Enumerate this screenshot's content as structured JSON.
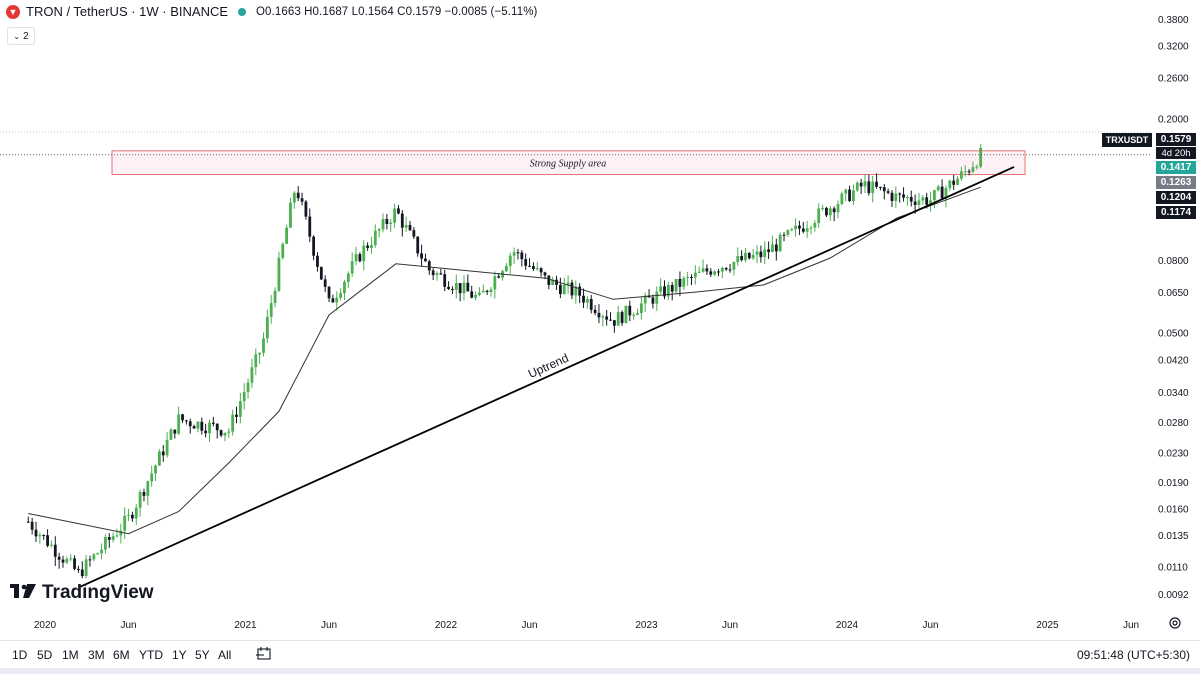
{
  "header": {
    "title": "TRON / TetherUS · 1W · BINANCE",
    "ohlc": "O0.1663 H0.1687 L0.1564 C0.1579 −0.0085 (−5.11%)",
    "indicator_count": "2"
  },
  "brand": "TradingView",
  "colors": {
    "up": "#26a69a",
    "up_candle": "#4caf50",
    "down": "#131722",
    "ma": "#333333",
    "supply_stroke": "#e57373",
    "supply_fill": "rgba(244,143,177,0.12)",
    "trendline": "#000000"
  },
  "chart_data": {
    "type": "candlestick",
    "symbol": "TRXUSDT",
    "scale": "log",
    "ylim": [
      0.0083,
      0.43
    ],
    "y_ticks": [
      "0.3800",
      "0.3200",
      "0.2600",
      "0.2000",
      "0.0800",
      "0.0650",
      "0.0500",
      "0.0420",
      "0.0340",
      "0.0280",
      "0.0230",
      "0.0190",
      "0.0160",
      "0.0135",
      "0.0110",
      "0.0092"
    ],
    "x_ticks": [
      "2020",
      "Jun",
      "2021",
      "Jun",
      "2022",
      "Jun",
      "2023",
      "Jun",
      "2024",
      "Jun",
      "2025",
      "Jun"
    ],
    "price_labels": [
      {
        "label": "TRXUSDT",
        "value": "0.1579",
        "color": "#131722"
      },
      {
        "label": "countdown",
        "value": "4d 20h",
        "color": "#131722"
      },
      {
        "label": "",
        "value": "0.1417",
        "color": "#26a69a"
      },
      {
        "label": "",
        "value": "0.1263",
        "color": "#787b86"
      },
      {
        "label": "",
        "value": "0.1204",
        "color": "#131722"
      },
      {
        "label": "",
        "value": "0.1174",
        "color": "#131722"
      }
    ],
    "annotations": {
      "supply_zone": {
        "text": "Strong Supply area",
        "low": 0.139,
        "high": 0.162,
        "start": "2020-05",
        "end": "2024-11"
      },
      "trendline": {
        "text": "Uptrend",
        "from": {
          "date": "2020-03",
          "value": 0.0096
        },
        "to": {
          "date": "2024-11",
          "value": 0.146
        }
      }
    },
    "anchors": [
      {
        "date": "2019-12",
        "value": 0.0147
      },
      {
        "date": "2020-03",
        "value": 0.0105
      },
      {
        "date": "2020-06",
        "value": 0.015
      },
      {
        "date": "2020-09",
        "value": 0.0285
      },
      {
        "date": "2020-12",
        "value": 0.0265
      },
      {
        "date": "2021-02",
        "value": 0.046
      },
      {
        "date": "2021-04",
        "value": 0.13
      },
      {
        "date": "2021-06",
        "value": 0.06
      },
      {
        "date": "2021-08",
        "value": 0.085
      },
      {
        "date": "2021-10",
        "value": 0.11
      },
      {
        "date": "2021-12",
        "value": 0.075
      },
      {
        "date": "2022-03",
        "value": 0.062
      },
      {
        "date": "2022-05",
        "value": 0.085
      },
      {
        "date": "2022-07",
        "value": 0.07
      },
      {
        "date": "2022-09",
        "value": 0.064
      },
      {
        "date": "2022-11",
        "value": 0.054
      },
      {
        "date": "2023-02",
        "value": 0.065
      },
      {
        "date": "2023-05",
        "value": 0.076
      },
      {
        "date": "2023-08",
        "value": 0.083
      },
      {
        "date": "2023-11",
        "value": 0.105
      },
      {
        "date": "2024-02",
        "value": 0.13
      },
      {
        "date": "2024-04",
        "value": 0.12
      },
      {
        "date": "2024-06",
        "value": 0.118
      },
      {
        "date": "2024-08",
        "value": 0.14
      },
      {
        "date": "2024-09",
        "value": 0.1579
      }
    ],
    "moving_average": [
      {
        "date": "2019-12",
        "value": 0.0155
      },
      {
        "date": "2020-06",
        "value": 0.0136
      },
      {
        "date": "2020-09",
        "value": 0.0157
      },
      {
        "date": "2020-12",
        "value": 0.0215
      },
      {
        "date": "2021-03",
        "value": 0.03
      },
      {
        "date": "2021-06",
        "value": 0.056
      },
      {
        "date": "2021-10",
        "value": 0.078
      },
      {
        "date": "2022-03",
        "value": 0.074
      },
      {
        "date": "2022-07",
        "value": 0.071
      },
      {
        "date": "2022-11",
        "value": 0.062
      },
      {
        "date": "2023-04",
        "value": 0.065
      },
      {
        "date": "2023-08",
        "value": 0.068
      },
      {
        "date": "2023-12",
        "value": 0.081
      },
      {
        "date": "2024-04",
        "value": 0.105
      },
      {
        "date": "2024-09",
        "value": 0.128
      }
    ]
  },
  "toolbar": {
    "ranges": [
      "1D",
      "5D",
      "1M",
      "3M",
      "6M",
      "YTD",
      "1Y",
      "5Y",
      "All"
    ],
    "time": "09:51:48 (UTC+5:30)"
  }
}
